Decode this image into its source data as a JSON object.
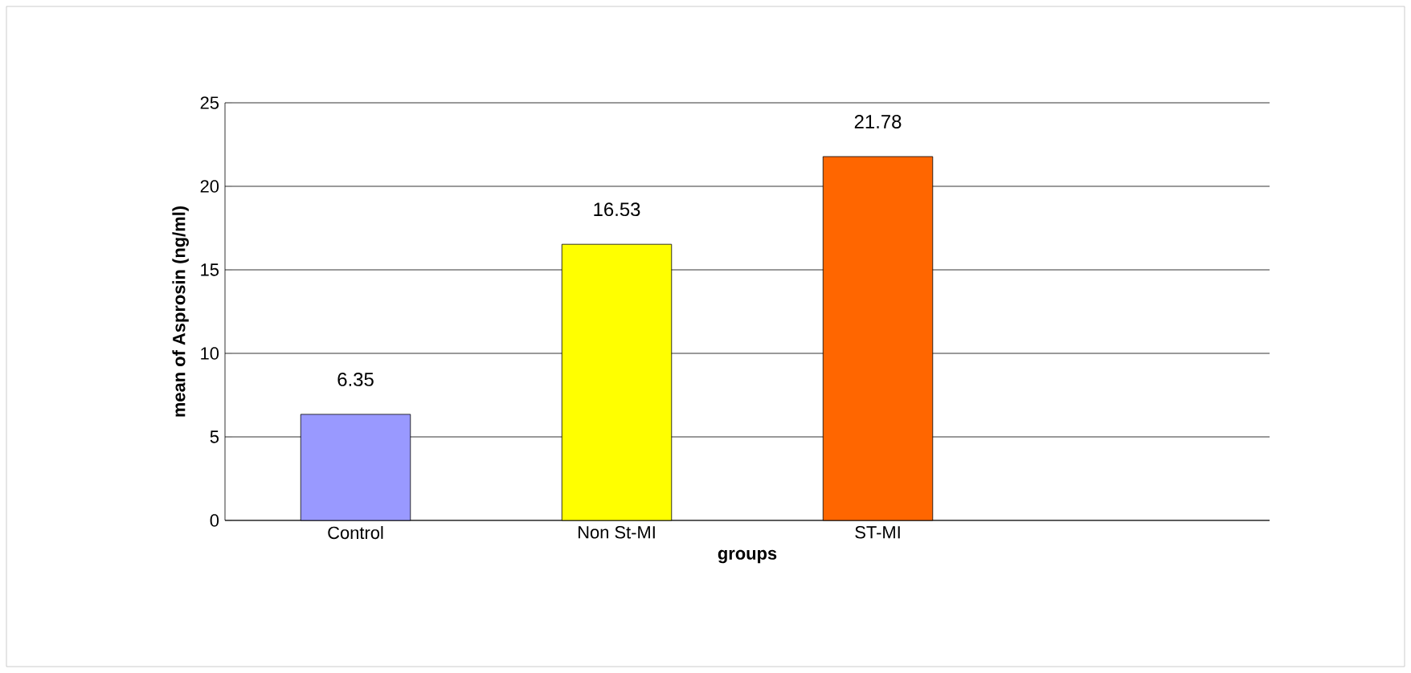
{
  "chart_data": {
    "type": "bar",
    "xlabel": "groups",
    "ylabel": "mean of Asprosin (ng/ml)",
    "categories": [
      "Control",
      "Non St-MI",
      "ST-MI",
      null
    ],
    "values": [
      6.35,
      16.53,
      21.78,
      null
    ],
    "colors": [
      "#9999ff",
      "#ffff00",
      "#ff6600",
      "#808080"
    ],
    "ylim": [
      0,
      25
    ],
    "yticks": [
      0,
      5,
      10,
      15,
      20,
      25
    ],
    "grid": "y",
    "data_labels": true
  }
}
